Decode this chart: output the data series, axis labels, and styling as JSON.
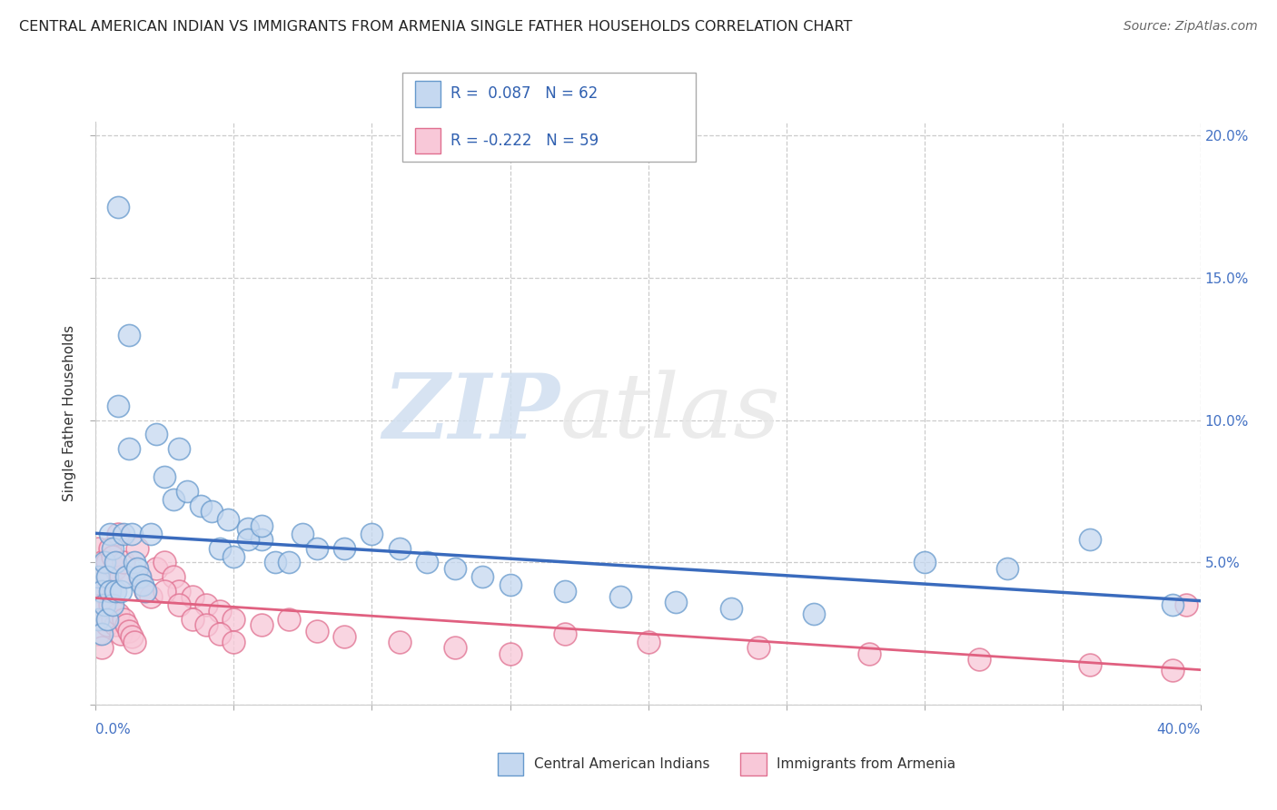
{
  "title": "CENTRAL AMERICAN INDIAN VS IMMIGRANTS FROM ARMENIA SINGLE FATHER HOUSEHOLDS CORRELATION CHART",
  "source": "Source: ZipAtlas.com",
  "ylabel": "Single Father Households",
  "r_blue": 0.087,
  "n_blue": 62,
  "r_pink": -0.222,
  "n_pink": 59,
  "blue_fill": "#c5d8f0",
  "blue_edge": "#6699cc",
  "pink_fill": "#f8c8d8",
  "pink_edge": "#e07090",
  "blue_line_color": "#3a6bbd",
  "pink_line_color": "#e06080",
  "legend_blue_label": "Central American Indians",
  "legend_pink_label": "Immigrants from Armenia",
  "watermark": "ZIPatlas",
  "xlim": [
    0.0,
    0.4
  ],
  "ylim": [
    0.0,
    0.205
  ],
  "blue_x": [
    0.001,
    0.001,
    0.002,
    0.002,
    0.003,
    0.003,
    0.004,
    0.004,
    0.005,
    0.005,
    0.006,
    0.006,
    0.007,
    0.007,
    0.008,
    0.009,
    0.01,
    0.011,
    0.012,
    0.013,
    0.014,
    0.015,
    0.016,
    0.017,
    0.018,
    0.02,
    0.022,
    0.025,
    0.028,
    0.03,
    0.033,
    0.038,
    0.042,
    0.048,
    0.055,
    0.06,
    0.065,
    0.07,
    0.075,
    0.08,
    0.09,
    0.1,
    0.11,
    0.12,
    0.13,
    0.14,
    0.15,
    0.17,
    0.19,
    0.21,
    0.23,
    0.26,
    0.3,
    0.33,
    0.36,
    0.39,
    0.045,
    0.05,
    0.055,
    0.06,
    0.012,
    0.008
  ],
  "blue_y": [
    0.045,
    0.03,
    0.04,
    0.025,
    0.05,
    0.035,
    0.045,
    0.03,
    0.06,
    0.04,
    0.055,
    0.035,
    0.05,
    0.04,
    0.175,
    0.04,
    0.06,
    0.045,
    0.13,
    0.06,
    0.05,
    0.048,
    0.045,
    0.042,
    0.04,
    0.06,
    0.095,
    0.08,
    0.072,
    0.09,
    0.075,
    0.07,
    0.068,
    0.065,
    0.062,
    0.058,
    0.05,
    0.05,
    0.06,
    0.055,
    0.055,
    0.06,
    0.055,
    0.05,
    0.048,
    0.045,
    0.042,
    0.04,
    0.038,
    0.036,
    0.034,
    0.032,
    0.05,
    0.048,
    0.058,
    0.035,
    0.055,
    0.052,
    0.058,
    0.063,
    0.09,
    0.105
  ],
  "pink_x": [
    0.001,
    0.001,
    0.001,
    0.002,
    0.002,
    0.002,
    0.003,
    0.003,
    0.004,
    0.004,
    0.005,
    0.005,
    0.006,
    0.006,
    0.007,
    0.007,
    0.008,
    0.008,
    0.009,
    0.009,
    0.01,
    0.01,
    0.011,
    0.012,
    0.013,
    0.014,
    0.015,
    0.016,
    0.018,
    0.02,
    0.022,
    0.025,
    0.028,
    0.03,
    0.035,
    0.04,
    0.045,
    0.05,
    0.06,
    0.07,
    0.08,
    0.09,
    0.11,
    0.13,
    0.15,
    0.17,
    0.2,
    0.24,
    0.28,
    0.32,
    0.36,
    0.39,
    0.395,
    0.025,
    0.03,
    0.035,
    0.04,
    0.045,
    0.05
  ],
  "pink_y": [
    0.055,
    0.04,
    0.025,
    0.05,
    0.035,
    0.02,
    0.045,
    0.03,
    0.05,
    0.028,
    0.055,
    0.035,
    0.052,
    0.03,
    0.048,
    0.028,
    0.06,
    0.032,
    0.045,
    0.025,
    0.05,
    0.03,
    0.028,
    0.026,
    0.024,
    0.022,
    0.055,
    0.045,
    0.04,
    0.038,
    0.048,
    0.05,
    0.045,
    0.04,
    0.038,
    0.035,
    0.033,
    0.03,
    0.028,
    0.03,
    0.026,
    0.024,
    0.022,
    0.02,
    0.018,
    0.025,
    0.022,
    0.02,
    0.018,
    0.016,
    0.014,
    0.012,
    0.035,
    0.04,
    0.035,
    0.03,
    0.028,
    0.025,
    0.022
  ]
}
